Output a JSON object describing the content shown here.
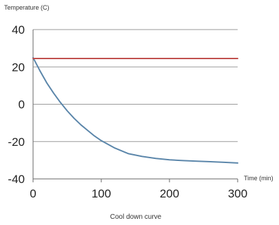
{
  "chart_data": {
    "type": "line",
    "title": "Cool down curve",
    "xlabel": "Time (min)",
    "ylabel": "Temperature (C)",
    "xlim": [
      0,
      300
    ],
    "ylim": [
      -40,
      40
    ],
    "x_ticks": [
      "0",
      "100",
      "200",
      "300"
    ],
    "y_ticks": [
      "40",
      "20",
      "0",
      "-20",
      "-40"
    ],
    "grid": "horizontal",
    "series": [
      {
        "color": "#5b86aa",
        "x": [
          0,
          10,
          20,
          30,
          40,
          50,
          60,
          70,
          80,
          90,
          100,
          120,
          140,
          160,
          180,
          200,
          220,
          240,
          260,
          280,
          300
        ],
        "y": [
          25,
          18,
          11.5,
          6,
          1,
          -3.5,
          -7.5,
          -11,
          -14,
          -17,
          -19.5,
          -23.5,
          -26.5,
          -28,
          -29,
          -29.8,
          -30.2,
          -30.5,
          -30.8,
          -31.1,
          -31.5
        ]
      },
      {
        "color": "#c0504d",
        "x": [
          0,
          300
        ],
        "y": [
          24.5,
          24.5
        ]
      }
    ]
  }
}
